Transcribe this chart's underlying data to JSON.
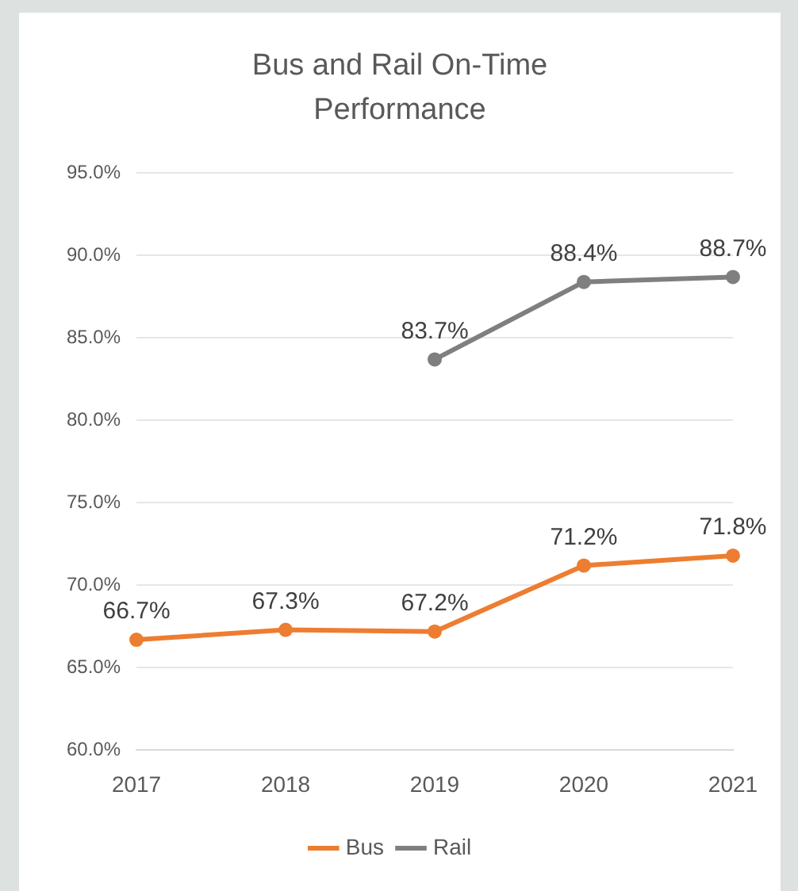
{
  "chart_data": {
    "type": "line",
    "title": "Bus and Rail On-Time Performance",
    "categories": [
      "2017",
      "2018",
      "2019",
      "2020",
      "2021"
    ],
    "series": [
      {
        "name": "Bus",
        "color": "#ed7d31",
        "values": [
          66.7,
          67.3,
          67.2,
          71.2,
          71.8
        ],
        "value_labels": [
          "66.7%",
          "67.3%",
          "67.2%",
          "71.2%",
          "71.8%"
        ]
      },
      {
        "name": "Rail",
        "color": "#7f7f7f",
        "values": [
          null,
          null,
          83.7,
          88.4,
          88.7
        ],
        "value_labels": [
          null,
          null,
          "83.7%",
          "88.4%",
          "88.7%"
        ]
      }
    ],
    "ylim": [
      60,
      95
    ],
    "yticks": [
      {
        "value": 60,
        "label": "60.0%"
      },
      {
        "value": 65,
        "label": "65.0%"
      },
      {
        "value": 70,
        "label": "70.0%"
      },
      {
        "value": 75,
        "label": "75.0%"
      },
      {
        "value": 80,
        "label": "80.0%"
      },
      {
        "value": 85,
        "label": "85.0%"
      },
      {
        "value": 90,
        "label": "90.0%"
      },
      {
        "value": 95,
        "label": "95.0%"
      }
    ],
    "grid": "y",
    "legend": "bottom",
    "marker": "circle",
    "line_style": "solid"
  }
}
